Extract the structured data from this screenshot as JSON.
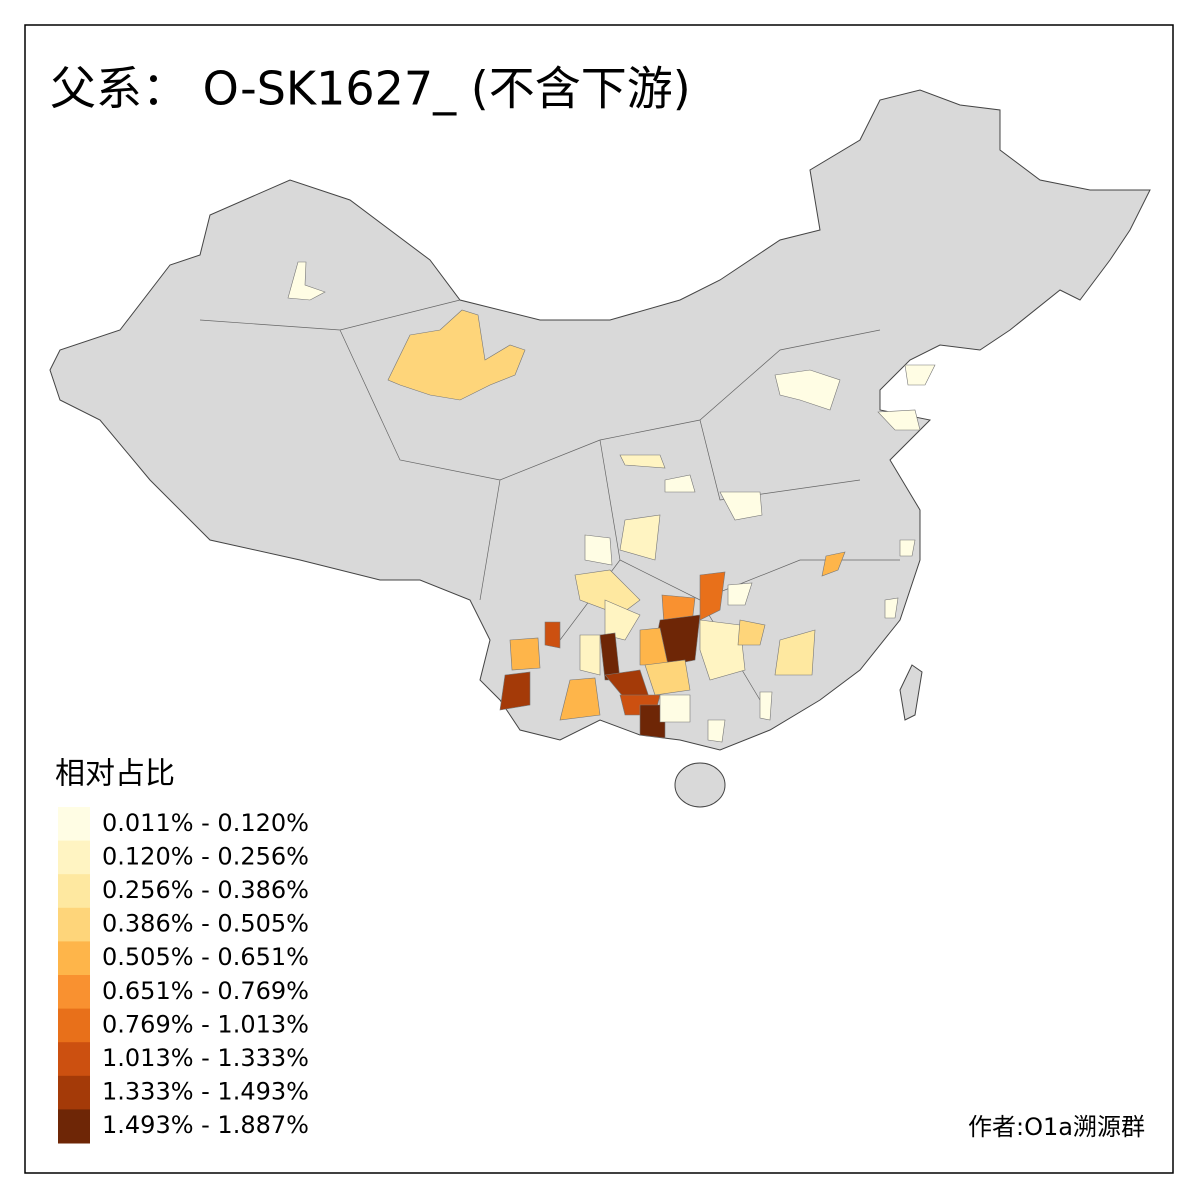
{
  "title": "父系： O-SK1627_ (不含下游)",
  "legend": {
    "title": "相对占比",
    "items": [
      {
        "label": "0.011% - 0.120%",
        "color": "#fffde4"
      },
      {
        "label": "0.120% - 0.256%",
        "color": "#fff4c2"
      },
      {
        "label": "0.256% - 0.386%",
        "color": "#fee8a0"
      },
      {
        "label": "0.386% - 0.505%",
        "color": "#fed57a"
      },
      {
        "label": "0.505% - 0.651%",
        "color": "#feb54a"
      },
      {
        "label": "0.651% - 0.769%",
        "color": "#f99130"
      },
      {
        "label": "0.769% - 1.013%",
        "color": "#e8701a"
      },
      {
        "label": "1.013% - 1.333%",
        "color": "#cc5010"
      },
      {
        "label": "1.333% - 1.493%",
        "color": "#a43a08"
      },
      {
        "label": "1.493% - 1.887%",
        "color": "#6e2606"
      }
    ]
  },
  "credit": "作者:O1a溯源群"
}
